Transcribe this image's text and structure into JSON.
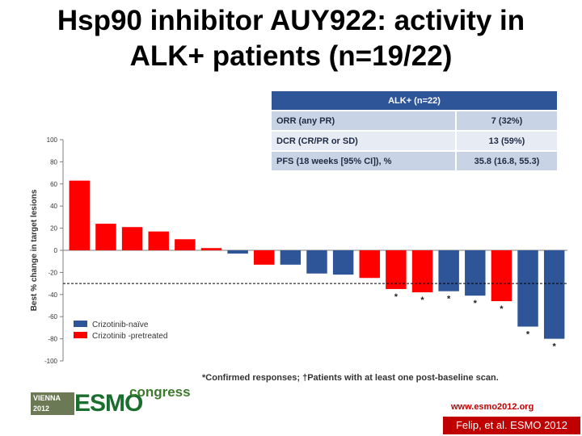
{
  "title": {
    "line1": "Hsp90 inhibitor AUY922: activity in",
    "line2": "ALK+ patients (n=19/22)"
  },
  "table": {
    "header": "ALK+ (n=22)",
    "rows": [
      {
        "label": "ORR (any PR)",
        "value": "7 (32%)"
      },
      {
        "label": "DCR (CR/PR or SD)",
        "value": "13 (59%)"
      },
      {
        "label": "PFS (18 weeks [95% CI]), %",
        "value": "35.8 (16.8, 55.3)"
      }
    ]
  },
  "footnote": "*Confirmed responses; †Patients with at least one post-baseline scan.",
  "logo": {
    "city": "VIENNA",
    "year": "2012",
    "name": "ESMO",
    "congress": "congress"
  },
  "url": "www.esmo2012.org",
  "citation": "Felip, et al. ESMO 2012",
  "colors": {
    "naive": "#2e5597",
    "pretreated": "#ff0000",
    "header": "#2e5597"
  },
  "chart_data": {
    "type": "bar",
    "ylabel": "Best % change in target lesions",
    "ylim": [
      -100,
      100
    ],
    "yticks": [
      100,
      80,
      60,
      40,
      20,
      0,
      -20,
      -40,
      -60,
      -80,
      -100
    ],
    "reference_line": -30,
    "legend": [
      {
        "name": "Crizotinib-naïve",
        "color": "#2e5597"
      },
      {
        "name": "Crizotinib -pretreated",
        "color": "#ff0000"
      }
    ],
    "legend_position": "bottom-left",
    "bars": [
      {
        "value": 63,
        "group": "pretreated",
        "marker": ""
      },
      {
        "value": 24,
        "group": "pretreated",
        "marker": ""
      },
      {
        "value": 21,
        "group": "pretreated",
        "marker": ""
      },
      {
        "value": 17,
        "group": "pretreated",
        "marker": ""
      },
      {
        "value": 10,
        "group": "pretreated",
        "marker": ""
      },
      {
        "value": 2,
        "group": "pretreated",
        "marker": ""
      },
      {
        "value": -3,
        "group": "naive",
        "marker": ""
      },
      {
        "value": -13,
        "group": "pretreated",
        "marker": ""
      },
      {
        "value": -13,
        "group": "naive",
        "marker": ""
      },
      {
        "value": -21,
        "group": "naive",
        "marker": ""
      },
      {
        "value": -22,
        "group": "naive",
        "marker": ""
      },
      {
        "value": -25,
        "group": "pretreated",
        "marker": ""
      },
      {
        "value": -35,
        "group": "pretreated",
        "marker": "*"
      },
      {
        "value": -38,
        "group": "pretreated",
        "marker": "*"
      },
      {
        "value": -37,
        "group": "naive",
        "marker": "*"
      },
      {
        "value": -41,
        "group": "naive",
        "marker": "*"
      },
      {
        "value": -46,
        "group": "pretreated",
        "marker": "*"
      },
      {
        "value": -69,
        "group": "naive",
        "marker": "*"
      },
      {
        "value": -80,
        "group": "naive",
        "marker": "*"
      }
    ]
  }
}
